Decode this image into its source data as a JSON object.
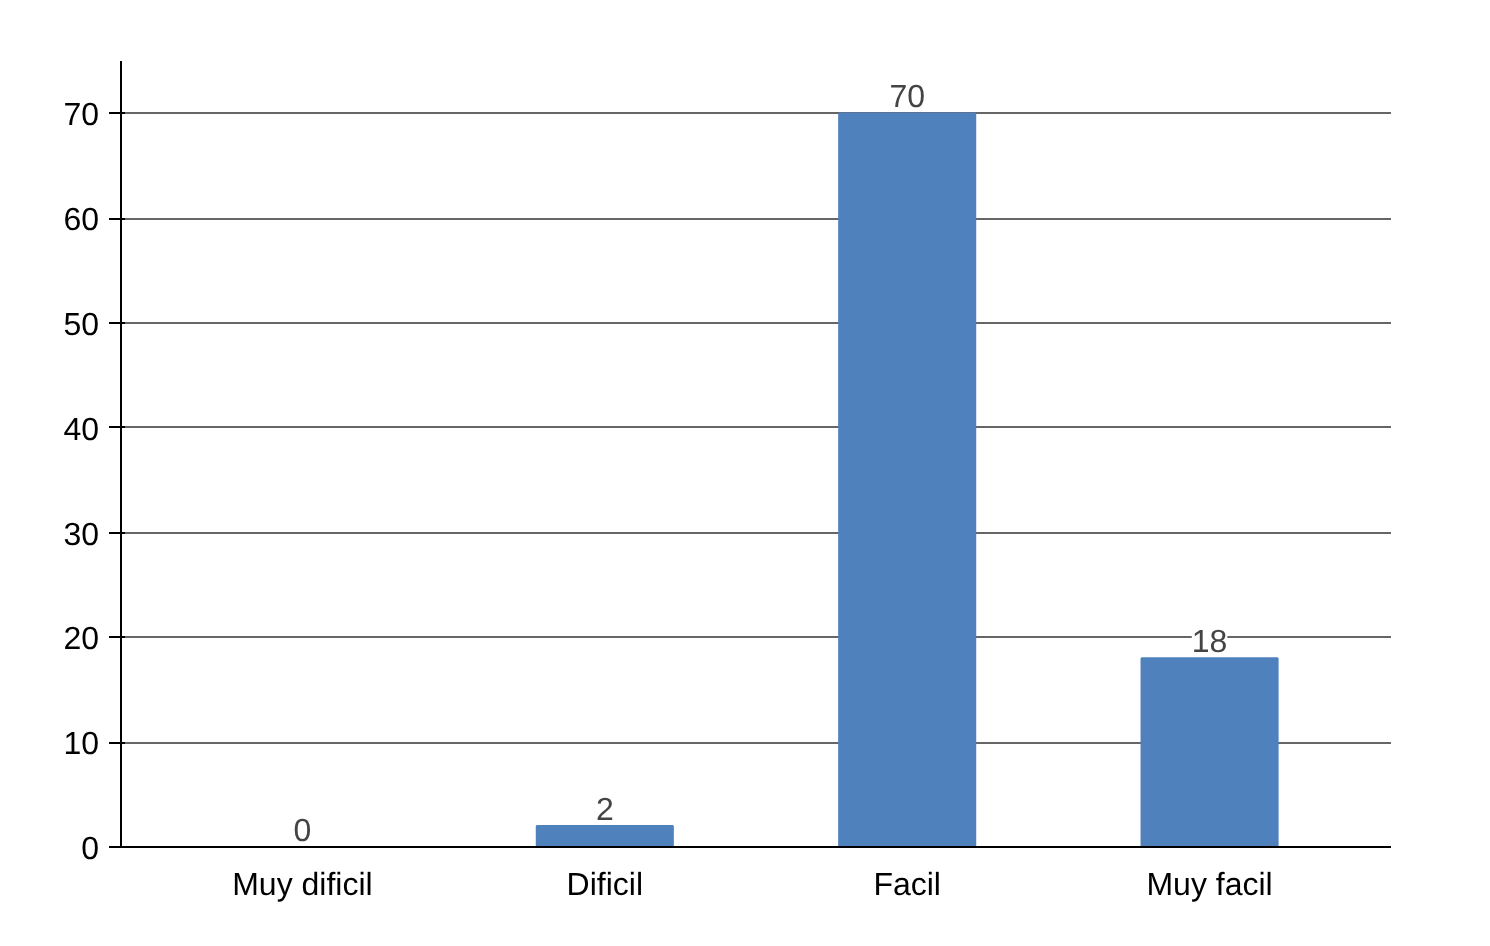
{
  "chart_data": {
    "type": "bar",
    "categories": [
      "Muy dificil",
      "Dificil",
      "Facil",
      "Muy facil"
    ],
    "values": [
      0,
      2,
      70,
      18
    ],
    "color": "#4f81bd",
    "ylim": [
      0,
      75
    ],
    "yticks": [
      0,
      10,
      20,
      30,
      40,
      50,
      60,
      70
    ],
    "grid": "y",
    "data_labels": true
  }
}
